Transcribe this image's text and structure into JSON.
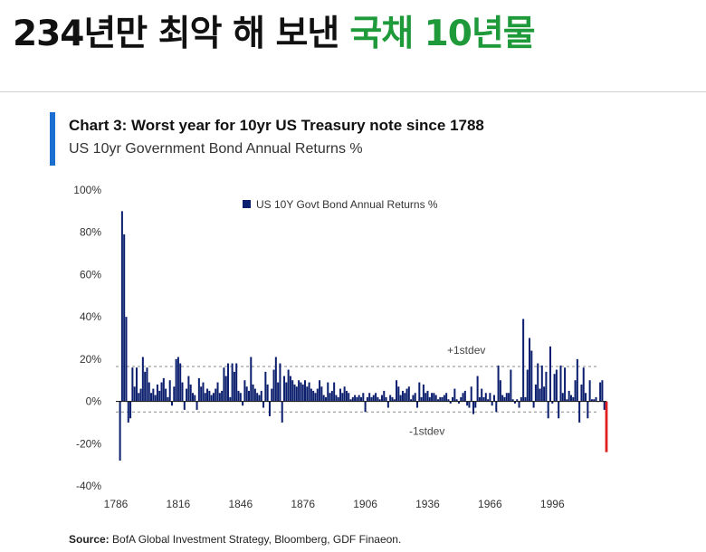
{
  "headline": {
    "part1": "234년만 최악 해 보낸",
    "part2": "국채 10년물",
    "part2_color": "#1f9a3a"
  },
  "chart_data": {
    "type": "bar",
    "title": "Chart 3: Worst year for 10yr US Treasury note since 1788",
    "subtitle": "US 10yr Government Bond Annual Returns %",
    "legend": "US 10Y Govt Bond Annual Returns %",
    "legend_position": "top-center",
    "xlabel": "",
    "ylabel": "",
    "ylim": [
      -40,
      100
    ],
    "yticks": [
      "100%",
      "80%",
      "60%",
      "40%",
      "20%",
      "0%",
      "-20%",
      "-40%"
    ],
    "ytick_values": [
      100,
      80,
      60,
      40,
      20,
      0,
      -20,
      -40
    ],
    "xticks": [
      "1786",
      "1816",
      "1846",
      "1876",
      "1906",
      "1936",
      "1966",
      "1996"
    ],
    "xtick_years": [
      1786,
      1816,
      1846,
      1876,
      1906,
      1936,
      1966,
      1996
    ],
    "x_start": 1786,
    "x_end": 2022,
    "std_band": {
      "upper": 16.5,
      "lower": -5,
      "upper_label": "+1stdev",
      "lower_label": "-1stdev"
    },
    "series": [
      {
        "name": "US 10Y Govt Bond Annual Returns %",
        "color": "#0c1f6e",
        "points": [
          [
            1788,
            -28
          ],
          [
            1789,
            90
          ],
          [
            1790,
            79
          ],
          [
            1791,
            40
          ],
          [
            1792,
            -10
          ],
          [
            1793,
            -8
          ],
          [
            1794,
            16
          ],
          [
            1795,
            7
          ],
          [
            1796,
            16
          ],
          [
            1797,
            4
          ],
          [
            1798,
            6
          ],
          [
            1799,
            21
          ],
          [
            1800,
            14
          ],
          [
            1801,
            16
          ],
          [
            1802,
            9
          ],
          [
            1803,
            4
          ],
          [
            1804,
            6
          ],
          [
            1805,
            3
          ],
          [
            1806,
            8
          ],
          [
            1807,
            5
          ],
          [
            1808,
            9
          ],
          [
            1809,
            11
          ],
          [
            1810,
            6
          ],
          [
            1811,
            2
          ],
          [
            1812,
            10
          ],
          [
            1813,
            -2
          ],
          [
            1814,
            7
          ],
          [
            1815,
            20
          ],
          [
            1816,
            21
          ],
          [
            1817,
            18
          ],
          [
            1818,
            9
          ],
          [
            1819,
            -4
          ],
          [
            1820,
            6
          ],
          [
            1821,
            12
          ],
          [
            1822,
            8
          ],
          [
            1823,
            4
          ],
          [
            1824,
            3
          ],
          [
            1825,
            -4
          ],
          [
            1826,
            11
          ],
          [
            1827,
            7
          ],
          [
            1828,
            9
          ],
          [
            1829,
            4
          ],
          [
            1830,
            6
          ],
          [
            1831,
            5
          ],
          [
            1832,
            3
          ],
          [
            1833,
            4
          ],
          [
            1834,
            6
          ],
          [
            1835,
            9
          ],
          [
            1836,
            4
          ],
          [
            1837,
            5
          ],
          [
            1838,
            16
          ],
          [
            1839,
            12
          ],
          [
            1840,
            18
          ],
          [
            1841,
            2
          ],
          [
            1842,
            18
          ],
          [
            1843,
            14
          ],
          [
            1844,
            18
          ],
          [
            1845,
            5
          ],
          [
            1846,
            4
          ],
          [
            1847,
            -2
          ],
          [
            1848,
            10
          ],
          [
            1849,
            7
          ],
          [
            1850,
            5
          ],
          [
            1851,
            21
          ],
          [
            1852,
            8
          ],
          [
            1853,
            6
          ],
          [
            1854,
            4
          ],
          [
            1855,
            3
          ],
          [
            1856,
            5
          ],
          [
            1857,
            -3
          ],
          [
            1858,
            14
          ],
          [
            1859,
            8
          ],
          [
            1860,
            -7
          ],
          [
            1861,
            6
          ],
          [
            1862,
            15
          ],
          [
            1863,
            21
          ],
          [
            1864,
            9
          ],
          [
            1865,
            18
          ],
          [
            1866,
            -10
          ],
          [
            1867,
            12
          ],
          [
            1868,
            9
          ],
          [
            1869,
            15
          ],
          [
            1870,
            12
          ],
          [
            1871,
            10
          ],
          [
            1872,
            8
          ],
          [
            1873,
            7
          ],
          [
            1874,
            10
          ],
          [
            1875,
            9
          ],
          [
            1876,
            8
          ],
          [
            1877,
            10
          ],
          [
            1878,
            7
          ],
          [
            1879,
            9
          ],
          [
            1880,
            6
          ],
          [
            1881,
            5
          ],
          [
            1882,
            4
          ],
          [
            1883,
            6
          ],
          [
            1884,
            10
          ],
          [
            1885,
            7
          ],
          [
            1886,
            3
          ],
          [
            1887,
            2
          ],
          [
            1888,
            9
          ],
          [
            1889,
            4
          ],
          [
            1890,
            5
          ],
          [
            1891,
            9
          ],
          [
            1892,
            3
          ],
          [
            1893,
            2
          ],
          [
            1894,
            6
          ],
          [
            1895,
            4
          ],
          [
            1896,
            7
          ],
          [
            1897,
            5
          ],
          [
            1898,
            4
          ],
          [
            1899,
            1
          ],
          [
            1900,
            2
          ],
          [
            1901,
            3
          ],
          [
            1902,
            2
          ],
          [
            1903,
            3
          ],
          [
            1904,
            2
          ],
          [
            1905,
            4
          ],
          [
            1906,
            -5
          ],
          [
            1907,
            2
          ],
          [
            1908,
            4
          ],
          [
            1909,
            2
          ],
          [
            1910,
            3
          ],
          [
            1911,
            4
          ],
          [
            1912,
            2
          ],
          [
            1913,
            1
          ],
          [
            1914,
            3
          ],
          [
            1915,
            5
          ],
          [
            1916,
            2
          ],
          [
            1917,
            -3
          ],
          [
            1918,
            3
          ],
          [
            1919,
            2
          ],
          [
            1920,
            1
          ],
          [
            1921,
            10
          ],
          [
            1922,
            7
          ],
          [
            1923,
            3
          ],
          [
            1924,
            5
          ],
          [
            1925,
            4
          ],
          [
            1926,
            6
          ],
          [
            1927,
            7
          ],
          [
            1928,
            1
          ],
          [
            1929,
            3
          ],
          [
            1930,
            4
          ],
          [
            1931,
            -3
          ],
          [
            1932,
            9
          ],
          [
            1933,
            2
          ],
          [
            1934,
            8
          ],
          [
            1935,
            4
          ],
          [
            1936,
            5
          ],
          [
            1937,
            2
          ],
          [
            1938,
            4
          ],
          [
            1939,
            4
          ],
          [
            1940,
            3
          ],
          [
            1941,
            1
          ],
          [
            1942,
            2
          ],
          [
            1943,
            2
          ],
          [
            1944,
            3
          ],
          [
            1945,
            4
          ],
          [
            1946,
            1
          ],
          [
            1947,
            -1
          ],
          [
            1948,
            2
          ],
          [
            1949,
            6
          ],
          [
            1950,
            1
          ],
          [
            1951,
            -1
          ],
          [
            1952,
            2
          ],
          [
            1953,
            4
          ],
          [
            1954,
            5
          ],
          [
            1955,
            -2
          ],
          [
            1956,
            -3
          ],
          [
            1957,
            7
          ],
          [
            1958,
            -6
          ],
          [
            1959,
            -3
          ],
          [
            1960,
            12
          ],
          [
            1961,
            2
          ],
          [
            1962,
            6
          ],
          [
            1963,
            2
          ],
          [
            1964,
            4
          ],
          [
            1965,
            1
          ],
          [
            1966,
            4
          ],
          [
            1967,
            -2
          ],
          [
            1968,
            3
          ],
          [
            1969,
            -5
          ],
          [
            1970,
            17
          ],
          [
            1971,
            10
          ],
          [
            1972,
            3
          ],
          [
            1973,
            2
          ],
          [
            1974,
            4
          ],
          [
            1975,
            4
          ],
          [
            1976,
            15
          ],
          [
            1977,
            1
          ],
          [
            1978,
            -1
          ],
          [
            1979,
            1
          ],
          [
            1980,
            -3
          ],
          [
            1981,
            2
          ],
          [
            1982,
            39
          ],
          [
            1983,
            2
          ],
          [
            1984,
            15
          ],
          [
            1985,
            30
          ],
          [
            1986,
            24
          ],
          [
            1987,
            -3
          ],
          [
            1988,
            8
          ],
          [
            1989,
            18
          ],
          [
            1990,
            6
          ],
          [
            1991,
            17
          ],
          [
            1992,
            7
          ],
          [
            1993,
            14
          ],
          [
            1994,
            -8
          ],
          [
            1995,
            26
          ],
          [
            1996,
            -1
          ],
          [
            1997,
            13
          ],
          [
            1998,
            15
          ],
          [
            1999,
            -8
          ],
          [
            2000,
            17
          ],
          [
            2001,
            4
          ],
          [
            2002,
            16
          ],
          [
            2003,
            1
          ],
          [
            2004,
            5
          ],
          [
            2005,
            3
          ],
          [
            2006,
            2
          ],
          [
            2007,
            10
          ],
          [
            2008,
            20
          ],
          [
            2009,
            -10
          ],
          [
            2010,
            8
          ],
          [
            2011,
            16
          ],
          [
            2012,
            4
          ],
          [
            2013,
            -8
          ],
          [
            2014,
            10
          ],
          [
            2015,
            1
          ],
          [
            2016,
            1
          ],
          [
            2017,
            2
          ],
          [
            2018,
            0
          ],
          [
            2019,
            9
          ],
          [
            2020,
            10
          ],
          [
            2021,
            -4
          ]
        ]
      },
      {
        "name": "",
        "color": "#e02020",
        "points": [
          [
            2022,
            -24
          ]
        ]
      }
    ]
  },
  "source": {
    "label": "Source:",
    "text": "BofA Global Investment Strategy, Bloomberg, GDF Finaeon."
  }
}
